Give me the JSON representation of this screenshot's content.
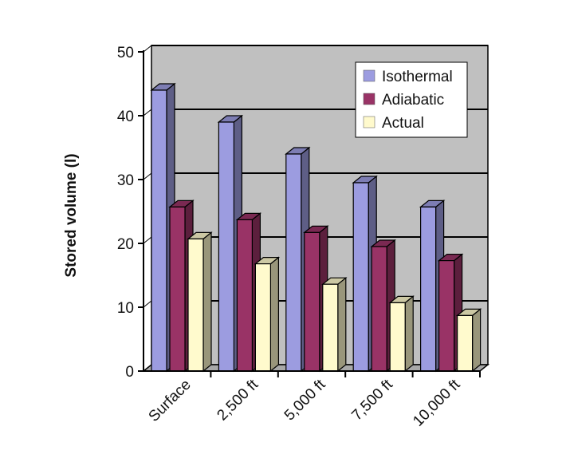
{
  "chart_data": {
    "type": "bar",
    "categories": [
      "Surface",
      "2,500 ft",
      "5,000 ft",
      "7,500 ft",
      "10,000 ft"
    ],
    "series": [
      {
        "name": "Isothermal",
        "values": [
          44,
          39,
          34,
          29.5,
          25.7
        ],
        "color": "#9c9ce0"
      },
      {
        "name": "Adiabatic",
        "values": [
          25.7,
          23.7,
          21.7,
          19.5,
          17.3
        ],
        "color": "#993366"
      },
      {
        "name": "Actual",
        "values": [
          20.7,
          16.8,
          13.6,
          10.7,
          8.7
        ],
        "color": "#fffacd"
      }
    ],
    "title": "",
    "xlabel": "",
    "ylabel": "Stored volume (l)",
    "ylim": [
      0,
      50
    ],
    "yticks": [
      0,
      10,
      20,
      30,
      40,
      50
    ],
    "grid": true,
    "legend_position": "top-right",
    "plot_background": "#c0c0c0",
    "three_d": true
  }
}
